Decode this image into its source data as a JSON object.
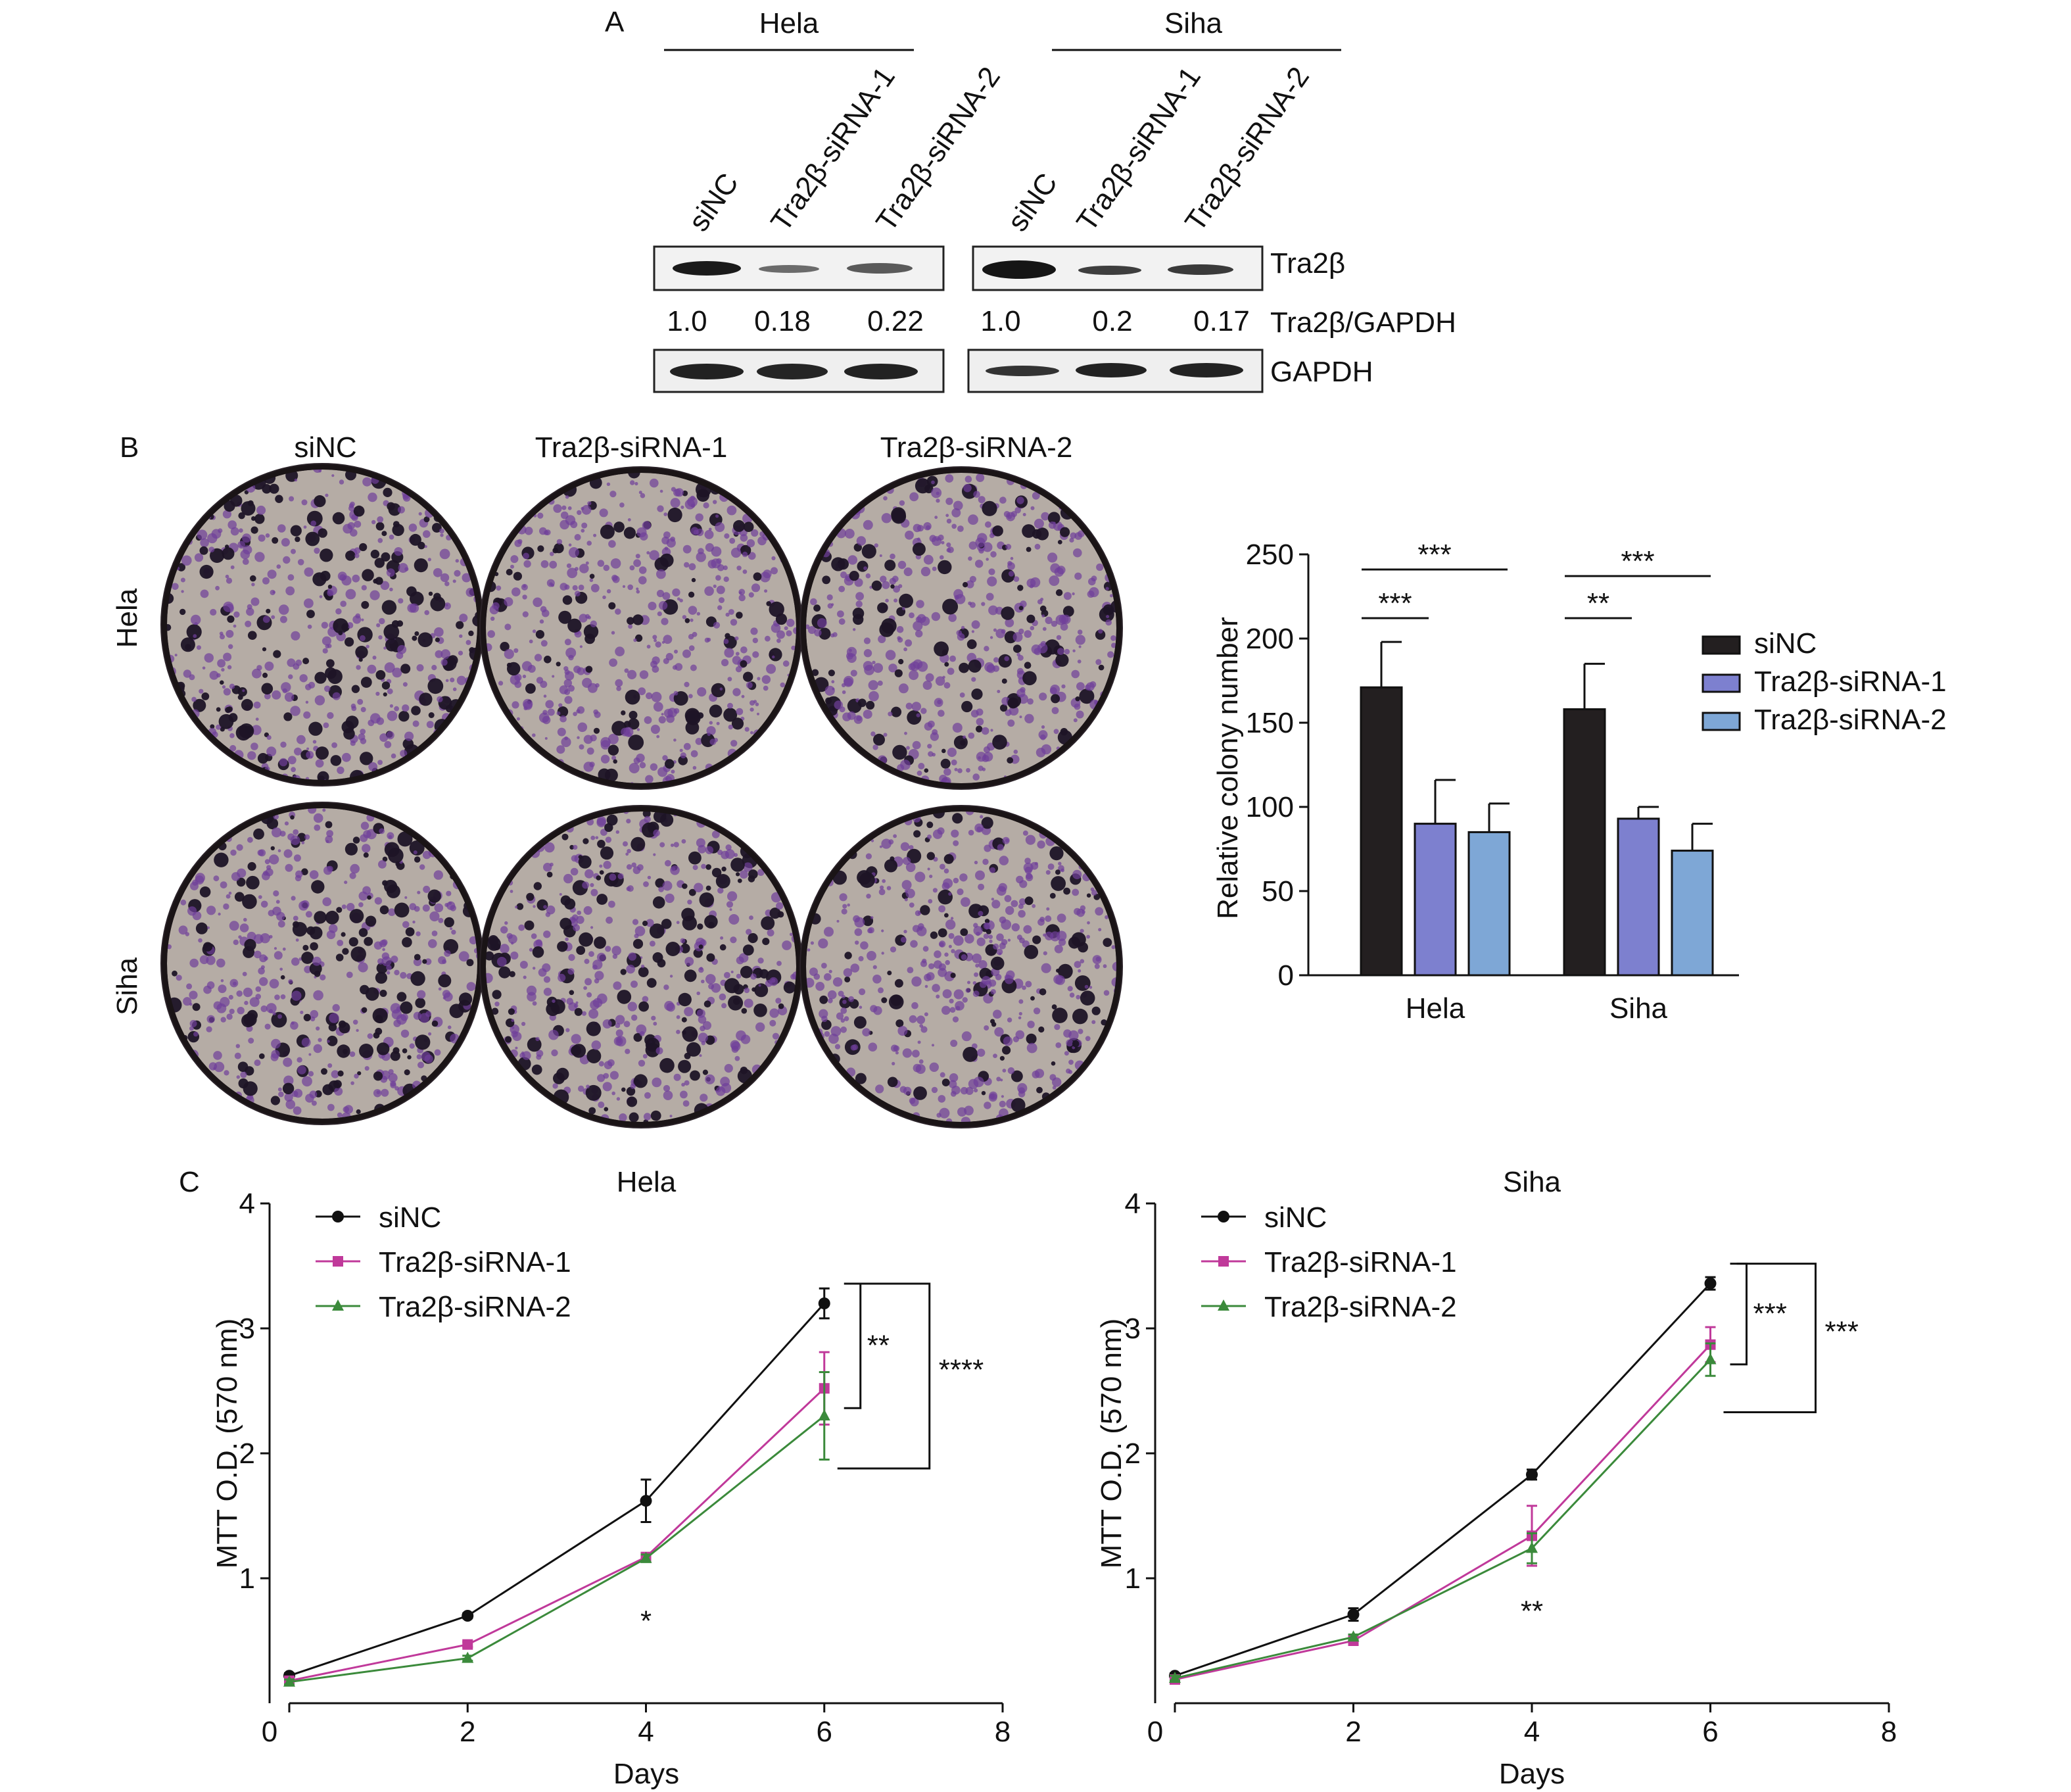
{
  "panel_labels": {
    "a": "A",
    "b": "B",
    "c": "C"
  },
  "western_blot": {
    "groups": [
      {
        "name": "Hela",
        "lanes": [
          "siNC",
          "Tra2β-siRNA-1",
          "Tra2β-siRNA-2"
        ],
        "ratios": [
          "1.0",
          "0.18",
          "0.22"
        ]
      },
      {
        "name": "Siha",
        "lanes": [
          "siNC",
          "Tra2β-siRNA-1",
          "Tra2β-siRNA-2"
        ],
        "ratios": [
          "1.0",
          "0.2",
          "0.17"
        ]
      }
    ],
    "row_labels": {
      "target": "Tra2β",
      "ratio": "Tra2β/GAPDH",
      "control": "GAPDH"
    },
    "colors": {
      "band": "#1a1a1a",
      "frame": "#222222"
    }
  },
  "colony_images": {
    "columns": [
      "siNC",
      "Tra2β-siRNA-1",
      "Tra2β-siRNA-2"
    ],
    "rows": [
      "Hela",
      "Siha"
    ],
    "colors": {
      "plate": "#b5aca5",
      "stain": "#6f3f9a",
      "colony": "#1e1426",
      "rim": "#2a2228"
    }
  },
  "chart_data": [
    {
      "type": "bar",
      "title": "",
      "xlabel": "",
      "ylabel": "Relative colony number",
      "ylim": [
        0,
        250
      ],
      "yticks": [
        0,
        50,
        100,
        150,
        200,
        250
      ],
      "categories": [
        "Hela",
        "Siha"
      ],
      "series": [
        {
          "name": "siNC",
          "color": "#231f20",
          "values": [
            171,
            158
          ],
          "errors": [
            27,
            27
          ]
        },
        {
          "name": "Tra2β-siRNA-1",
          "color": "#7d80cf",
          "values": [
            90,
            93
          ],
          "errors": [
            26,
            7
          ]
        },
        {
          "name": "Tra2β-siRNA-2",
          "color": "#7ea7d6",
          "values": [
            85,
            74
          ],
          "errors": [
            17,
            16
          ]
        }
      ],
      "significance": [
        {
          "category": "Hela",
          "from": 0,
          "to": 2,
          "label": "***"
        },
        {
          "category": "Hela",
          "from": 0,
          "to": 1,
          "label": "***"
        },
        {
          "category": "Siha",
          "from": 0,
          "to": 2,
          "label": "***"
        },
        {
          "category": "Siha",
          "from": 0,
          "to": 1,
          "label": "**"
        }
      ],
      "legend": "right"
    },
    {
      "type": "line",
      "title": "Hela",
      "xlabel": "Days",
      "ylabel": "MTT O.D. (570 nm)",
      "xlim": [
        0,
        8
      ],
      "ylim": [
        0,
        4
      ],
      "xticks": [
        0,
        2,
        4,
        6,
        8
      ],
      "yticks": [
        1,
        2,
        3,
        4
      ],
      "x": [
        0,
        2,
        4,
        6
      ],
      "series": [
        {
          "name": "siNC",
          "color": "#111111",
          "marker": "circle",
          "values": [
            0.22,
            0.7,
            1.62,
            3.2
          ],
          "errors": [
            0.02,
            0.02,
            0.17,
            0.12
          ]
        },
        {
          "name": "Tra2β-siRNA-1",
          "color": "#c0399a",
          "marker": "square",
          "values": [
            0.18,
            0.47,
            1.17,
            2.52
          ],
          "errors": [
            0.02,
            0.02,
            0.03,
            0.29
          ]
        },
        {
          "name": "Tra2β-siRNA-2",
          "color": "#3b8a3b",
          "marker": "triangle",
          "values": [
            0.17,
            0.36,
            1.16,
            2.3
          ],
          "errors": [
            0.02,
            0.02,
            0.03,
            0.35
          ]
        }
      ],
      "annotations": [
        {
          "x": 4,
          "label": "*"
        },
        {
          "x": 6,
          "label": "**",
          "bracket": "siNC-siRNA-1"
        },
        {
          "x": 6,
          "label": "****",
          "bracket": "siNC-siRNA-2"
        }
      ],
      "legend": "top-left"
    },
    {
      "type": "line",
      "title": "Siha",
      "xlabel": "Days",
      "ylabel": "MTT O.D. (570 nm)",
      "xlim": [
        0,
        8
      ],
      "ylim": [
        0,
        4
      ],
      "xticks": [
        0,
        2,
        4,
        6,
        8
      ],
      "yticks": [
        1,
        2,
        3,
        4
      ],
      "x": [
        0,
        2,
        4,
        6
      ],
      "series": [
        {
          "name": "siNC",
          "color": "#111111",
          "marker": "circle",
          "values": [
            0.22,
            0.71,
            1.83,
            3.36
          ],
          "errors": [
            0.02,
            0.05,
            0.04,
            0.05
          ]
        },
        {
          "name": "Tra2β-siRNA-1",
          "color": "#c0399a",
          "marker": "square",
          "values": [
            0.19,
            0.5,
            1.34,
            2.87
          ],
          "errors": [
            0.02,
            0.02,
            0.24,
            0.14
          ]
        },
        {
          "name": "Tra2β-siRNA-2",
          "color": "#3b8a3b",
          "marker": "triangle",
          "values": [
            0.2,
            0.53,
            1.24,
            2.75
          ],
          "errors": [
            0.02,
            0.02,
            0.12,
            0.13
          ]
        }
      ],
      "annotations": [
        {
          "x": 4,
          "label": "**"
        },
        {
          "x": 6,
          "label": "***",
          "bracket": "siNC-siRNA-1"
        },
        {
          "x": 6,
          "label": "***",
          "bracket": "siNC-siRNA-2"
        }
      ],
      "legend": "top-left"
    }
  ]
}
